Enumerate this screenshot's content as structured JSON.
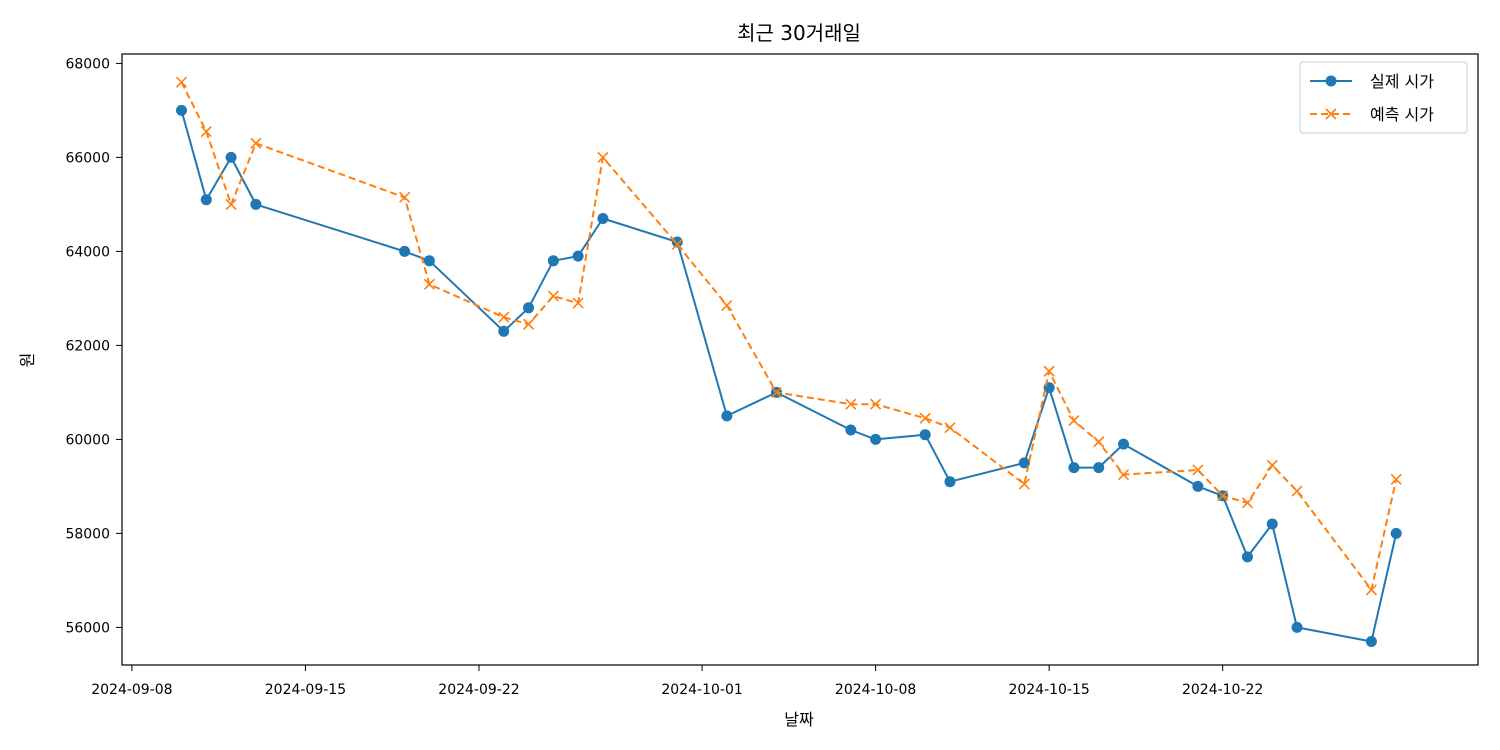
{
  "chart_data": {
    "type": "line",
    "title": "최근 30거래일",
    "xlabel": "날짜",
    "ylabel": "원",
    "x_tick_labels": [
      "2024-09-08",
      "2024-09-15",
      "2024-09-22",
      "2024-10-01",
      "2024-10-08",
      "2024-10-15",
      "2024-10-22"
    ],
    "y_tick_labels": [
      "56000",
      "58000",
      "60000",
      "62000",
      "64000",
      "66000",
      "68000"
    ],
    "y_ticks": [
      56000,
      58000,
      60000,
      62000,
      64000,
      66000,
      68000
    ],
    "xlim": [
      "2024-09-08",
      "2024-10-31"
    ],
    "ylim": [
      55200,
      68200
    ],
    "grid": false,
    "legend_position": "top-right",
    "dates": [
      "2024-09-10",
      "2024-09-11",
      "2024-09-12",
      "2024-09-13",
      "2024-09-19",
      "2024-09-20",
      "2024-09-23",
      "2024-09-24",
      "2024-09-25",
      "2024-09-26",
      "2024-09-27",
      "2024-09-30",
      "2024-10-02",
      "2024-10-04",
      "2024-10-07",
      "2024-10-08",
      "2024-10-10",
      "2024-10-11",
      "2024-10-14",
      "2024-10-15",
      "2024-10-16",
      "2024-10-17",
      "2024-10-18",
      "2024-10-21",
      "2024-10-22",
      "2024-10-23",
      "2024-10-24",
      "2024-10-25",
      "2024-10-28",
      "2024-10-29"
    ],
    "series": [
      {
        "name": "실제 시가",
        "color": "#1f77b4",
        "line_style": "solid",
        "marker": "circle",
        "values": [
          67000,
          65100,
          66000,
          65000,
          64000,
          63800,
          62300,
          62800,
          63800,
          63900,
          64700,
          64200,
          60500,
          61000,
          60200,
          60000,
          60100,
          59100,
          59500,
          61100,
          59400,
          59400,
          59900,
          59000,
          58800,
          57500,
          58200,
          56000,
          55700,
          58000
        ]
      },
      {
        "name": "예측 시가",
        "color": "#ff7f0e",
        "line_style": "dashed",
        "marker": "x",
        "values": [
          67600,
          66550,
          65000,
          66300,
          65150,
          63300,
          62600,
          62450,
          63050,
          62900,
          66000,
          64150,
          62850,
          61000,
          60750,
          60750,
          60450,
          60250,
          59050,
          61450,
          60400,
          59950,
          59250,
          59350,
          58800,
          58650,
          59450,
          58900,
          56800,
          59150
        ]
      }
    ]
  }
}
